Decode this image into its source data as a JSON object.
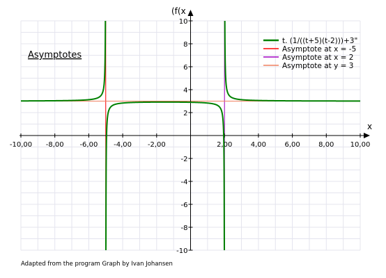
{
  "chart_data": {
    "type": "line",
    "xlabel": "x",
    "ylabel": "(f(x",
    "xlim": [
      -10,
      10
    ],
    "ylim": [
      -10,
      10
    ],
    "x_ticks": [
      -10,
      -8,
      -6,
      -4,
      -2,
      2,
      4,
      6,
      8,
      10
    ],
    "x_tick_labels": [
      "-10,00",
      "-8,00",
      "-6,00",
      "-4,00",
      "-2,00",
      "2,00",
      "4,00",
      "6,00",
      "8,00",
      "10,00"
    ],
    "y_ticks": [
      -10,
      -8,
      -6,
      -4,
      -2,
      2,
      4,
      6,
      8,
      10
    ],
    "y_tick_labels": [
      "-10",
      "-8",
      "-6",
      "-4",
      "-2",
      "2",
      "4",
      "6",
      "8",
      "10"
    ],
    "grid": true,
    "legend_position": "top-right",
    "function": {
      "name": "t. (1/((t+5)(t-2)))+3\"",
      "color": "#008000",
      "expression": "1/((x+5)(x-2))+3"
    },
    "asymptotes": [
      {
        "name": "Asymptote at x = -5",
        "orientation": "vertical",
        "value": -5,
        "color": "#ff0000"
      },
      {
        "name": "Asymptote at x = 2",
        "orientation": "vertical",
        "value": 2,
        "color": "#a000c0"
      },
      {
        "name": "Asymptote at y = 3",
        "orientation": "horizontal",
        "value": 3,
        "color": "#f08060"
      }
    ],
    "annotation": "Asymptotes"
  },
  "footer": {
    "credit": "Adapted from the program Graph by Ivan Johansen"
  }
}
